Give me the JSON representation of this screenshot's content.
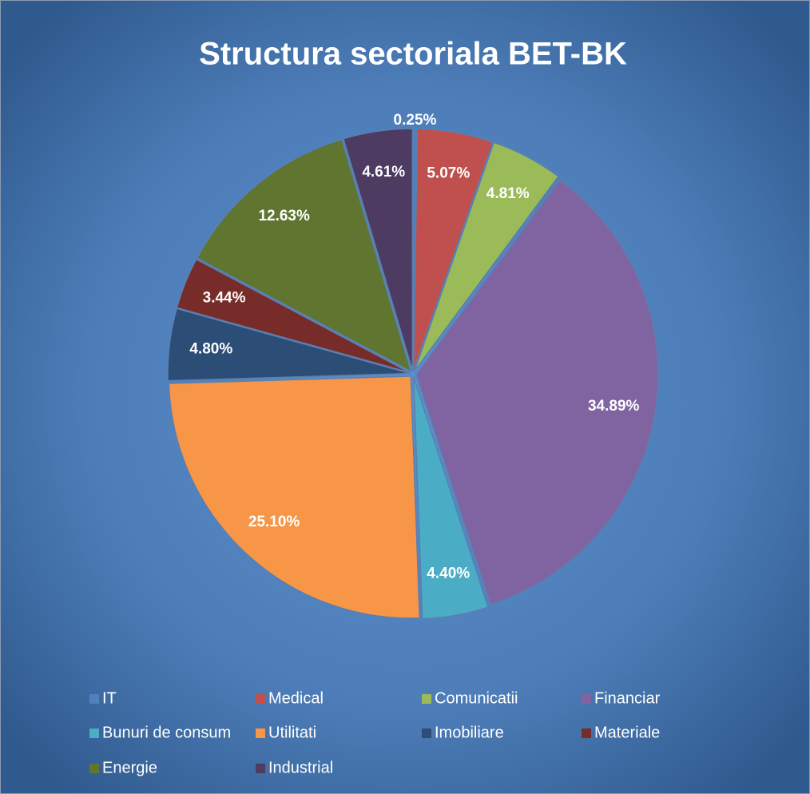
{
  "chart_data": {
    "type": "pie",
    "title": "Structura sectoriala BET-BK",
    "categories": [
      "IT",
      "Medical",
      "Comunicatii",
      "Financiar",
      "Bunuri de consum",
      "Utilitati",
      "Imobiliare",
      "Materiale",
      "Energie",
      "Industrial"
    ],
    "values": [
      0.25,
      5.07,
      4.81,
      34.89,
      4.4,
      25.1,
      4.8,
      3.44,
      12.63,
      4.61
    ],
    "value_labels": [
      "0.25%",
      "5.07%",
      "4.81%",
      "34.89%",
      "4.40%",
      "25.10%",
      "4.80%",
      "3.44%",
      "12.63%",
      "4.61%"
    ],
    "colors": [
      "#4f81bd",
      "#c0504d",
      "#9bbb59",
      "#8064a2",
      "#4bacc6",
      "#f79646",
      "#2c4d75",
      "#772c2a",
      "#5f7530",
      "#4d3b62"
    ],
    "legend": "bottom"
  }
}
